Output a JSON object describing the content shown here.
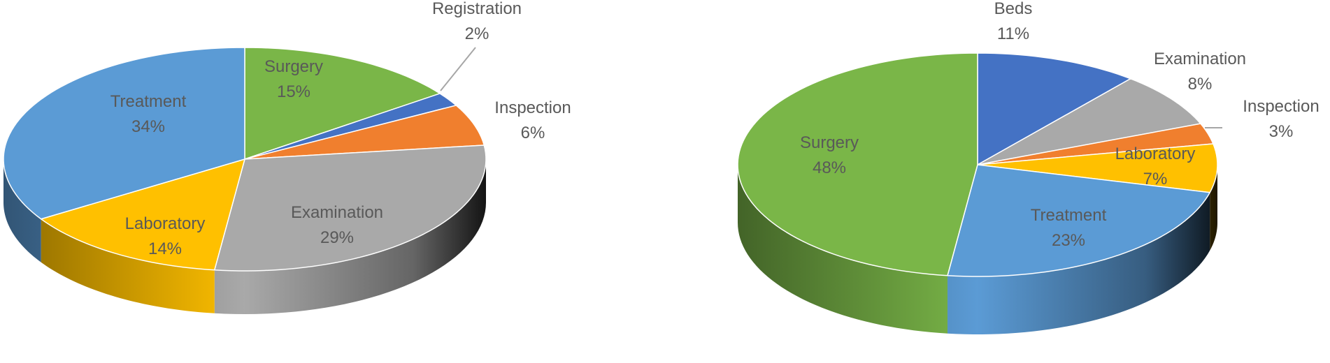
{
  "chart_data": [
    {
      "type": "pie",
      "style": "3d",
      "title": "",
      "slices": [
        {
          "label": "Surgery",
          "pct_label": "15%",
          "value": 15,
          "color": "#7ab648"
        },
        {
          "label": "Registration",
          "pct_label": "2%",
          "value": 2,
          "color": "#4472c4"
        },
        {
          "label": "Inspection",
          "pct_label": "6%",
          "value": 6,
          "color": "#f07f2e"
        },
        {
          "label": "Examination",
          "pct_label": "29%",
          "value": 29,
          "color": "#a9a9a9"
        },
        {
          "label": "Laboratory",
          "pct_label": "14%",
          "value": 14,
          "color": "#ffc000"
        },
        {
          "label": "Treatment",
          "pct_label": "34%",
          "value": 34,
          "color": "#5b9bd5"
        }
      ]
    },
    {
      "type": "pie",
      "style": "3d",
      "title": "",
      "slices": [
        {
          "label": "Beds",
          "pct_label": "11%",
          "value": 11,
          "color": "#4472c4"
        },
        {
          "label": "Examination",
          "pct_label": "8%",
          "value": 8,
          "color": "#a9a9a9"
        },
        {
          "label": "Inspection",
          "pct_label": "3%",
          "value": 3,
          "color": "#f07f2e"
        },
        {
          "label": "Laboratory",
          "pct_label": "7%",
          "value": 7,
          "color": "#ffc000"
        },
        {
          "label": "Treatment",
          "pct_label": "23%",
          "value": 23,
          "color": "#5b9bd5"
        },
        {
          "label": "Surgery",
          "pct_label": "48%",
          "value": 48,
          "color": "#7ab648"
        }
      ]
    }
  ]
}
